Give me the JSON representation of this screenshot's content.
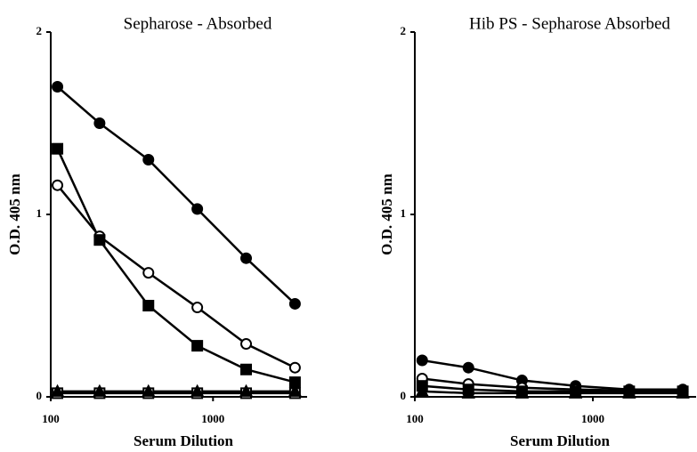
{
  "chart_data": [
    {
      "type": "line",
      "title": "Sepharose - Absorbed",
      "xlabel": "Serum Dilution",
      "ylabel": "O.D. 405 nm",
      "xscale": "log",
      "xlim": [
        100,
        3800
      ],
      "ylim": [
        0,
        2
      ],
      "xticks": [
        100,
        1000
      ],
      "yticks": [
        0,
        1,
        2
      ],
      "x": [
        110,
        200,
        400,
        800,
        1600,
        3200
      ],
      "series": [
        {
          "marker": "circle",
          "filled": true,
          "color": "#000000",
          "values": [
            1.7,
            1.5,
            1.3,
            1.03,
            0.76,
            0.51
          ]
        },
        {
          "marker": "circle",
          "filled": false,
          "color": "#000000",
          "values": [
            1.16,
            0.88,
            0.68,
            0.49,
            0.29,
            0.16
          ]
        },
        {
          "marker": "square",
          "filled": true,
          "color": "#000000",
          "values": [
            1.36,
            0.86,
            0.5,
            0.28,
            0.15,
            0.08
          ]
        },
        {
          "marker": "square",
          "filled": false,
          "color": "#000000",
          "values": [
            0.02,
            0.02,
            0.02,
            0.02,
            0.02,
            0.02
          ]
        },
        {
          "marker": "triangle",
          "filled": true,
          "color": "#000000",
          "values": [
            0.03,
            0.03,
            0.03,
            0.03,
            0.03,
            0.03
          ]
        }
      ]
    },
    {
      "type": "line",
      "title": "Hib PS - Sepharose Absorbed",
      "xlabel": "Serum Dilution",
      "ylabel": "O.D. 405 nm",
      "xscale": "log",
      "xlim": [
        100,
        3800
      ],
      "ylim": [
        0,
        2
      ],
      "xticks": [
        100,
        1000
      ],
      "yticks": [
        0,
        1,
        2
      ],
      "x": [
        110,
        200,
        400,
        800,
        1600,
        3200
      ],
      "series": [
        {
          "marker": "circle",
          "filled": true,
          "color": "#000000",
          "values": [
            0.2,
            0.16,
            0.09,
            0.06,
            0.04,
            0.04
          ]
        },
        {
          "marker": "circle",
          "filled": false,
          "color": "#000000",
          "values": [
            0.1,
            0.07,
            0.05,
            0.04,
            0.035,
            0.03
          ]
        },
        {
          "marker": "square",
          "filled": true,
          "color": "#000000",
          "values": [
            0.06,
            0.04,
            0.03,
            0.03,
            0.03,
            0.03
          ]
        },
        {
          "marker": "triangle",
          "filled": true,
          "color": "#000000",
          "values": [
            0.03,
            0.02,
            0.02,
            0.02,
            0.02,
            0.02
          ]
        }
      ]
    }
  ]
}
